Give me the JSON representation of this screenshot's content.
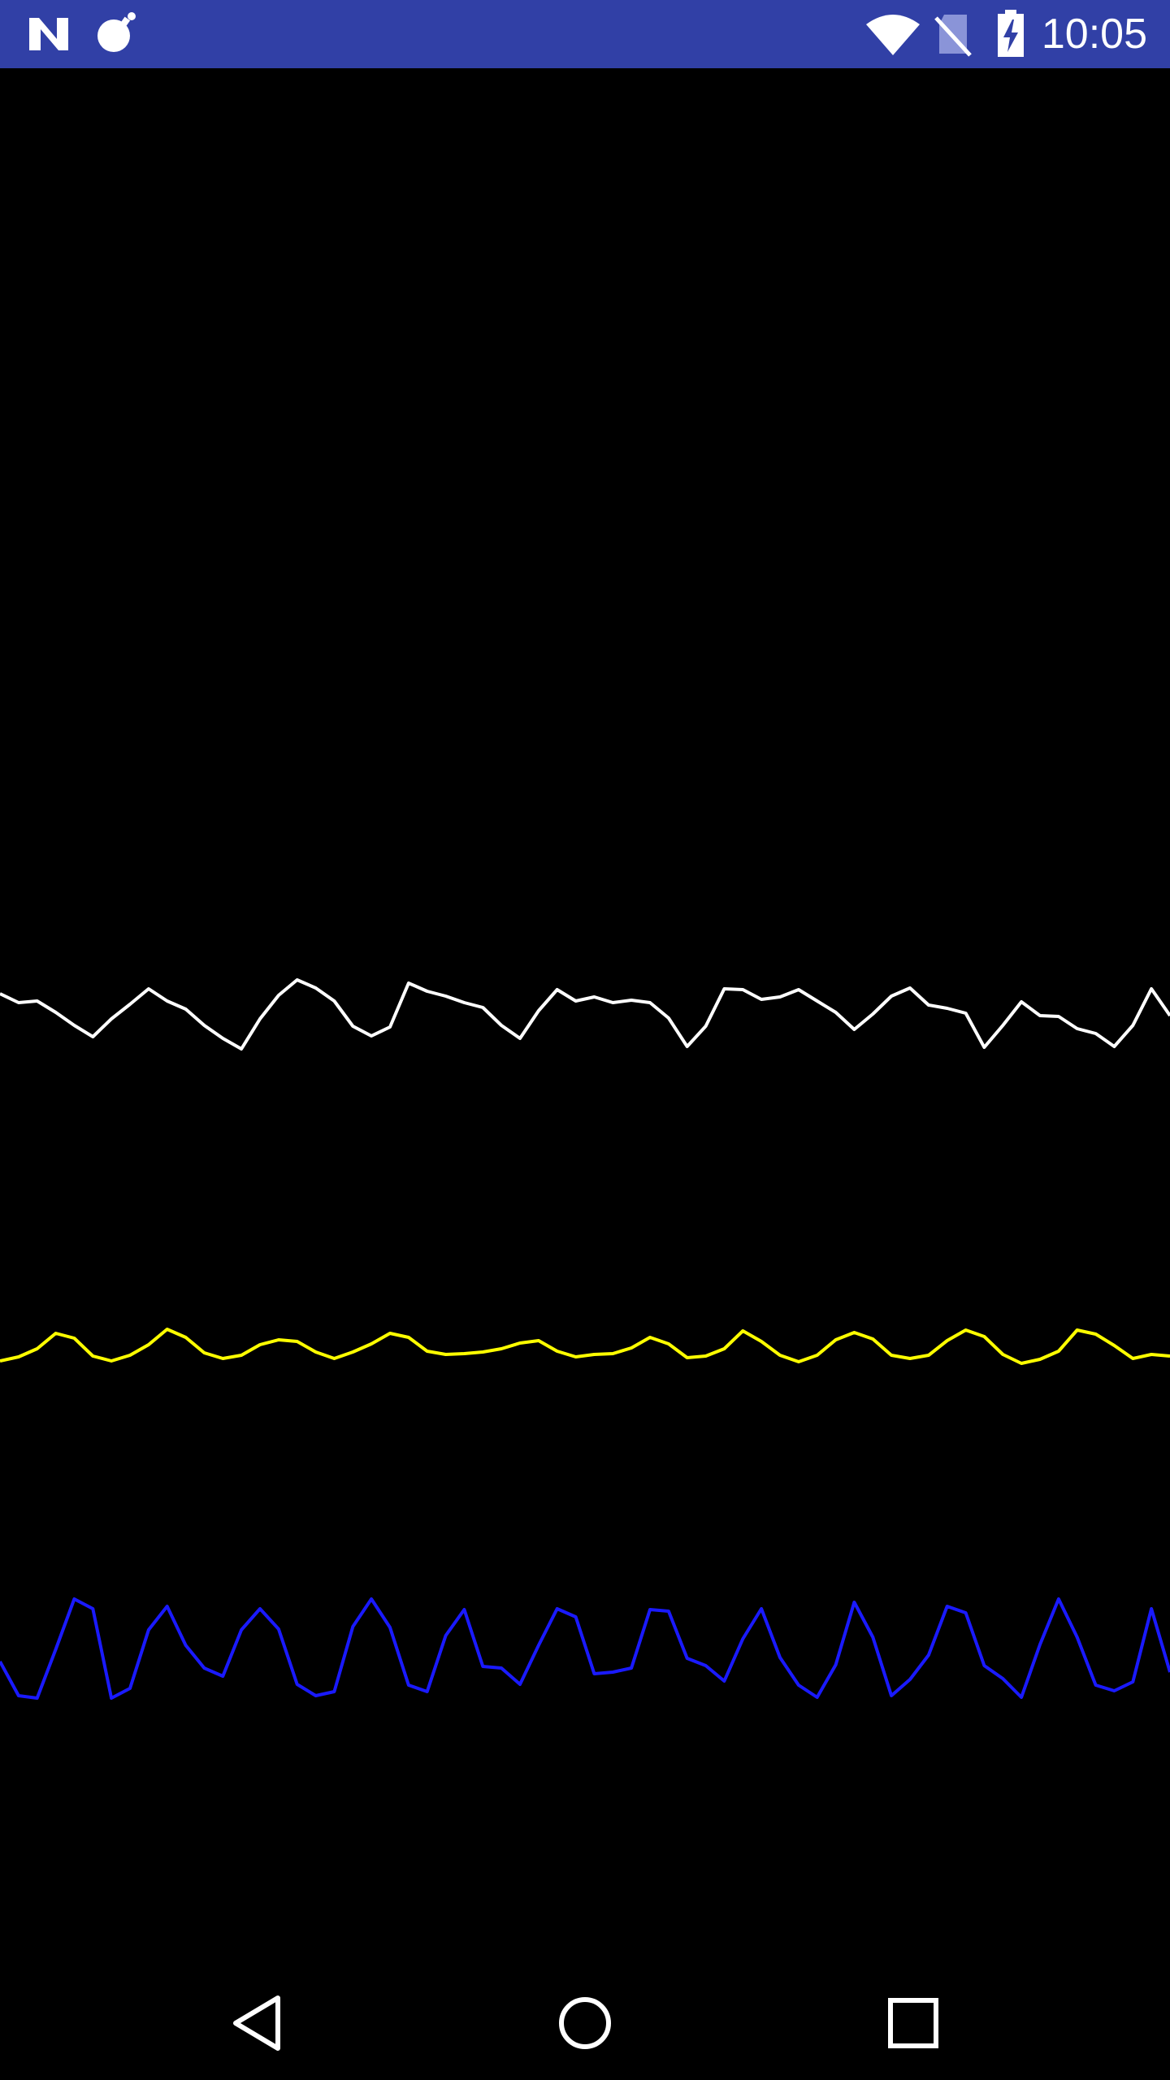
{
  "status_bar": {
    "time": "10:05",
    "background_color": "#3140a6",
    "left_icons": [
      "n-logo-icon",
      "bomb-icon"
    ],
    "right_icons": [
      "wifi-icon",
      "no-sim-icon",
      "battery-charging-icon"
    ]
  },
  "chart_data": {
    "type": "line",
    "xlabel": "",
    "ylabel": "",
    "grid": false,
    "legend": "none",
    "ylim": [
      0,
      2336
    ],
    "series": [
      {
        "color": "#ffffff",
        "x": [
          0,
          14,
          28,
          42,
          56,
          70,
          84,
          98,
          112,
          126,
          140,
          154,
          168,
          182,
          196,
          210,
          224,
          238,
          252,
          266,
          280,
          294,
          308,
          322,
          336,
          350,
          364,
          378,
          392,
          406,
          420,
          434,
          448,
          462,
          476,
          490,
          504,
          518,
          532,
          546,
          560,
          574,
          588,
          602,
          616,
          630,
          644,
          658,
          672,
          686,
          700,
          714,
          728,
          742,
          756,
          770,
          784,
          798,
          812,
          826,
          840,
          854,
          868,
          882
        ],
        "values": [
          1223,
          1234,
          1232,
          1246,
          1262,
          1276,
          1254,
          1236,
          1217,
          1232,
          1242,
          1262,
          1278,
          1291,
          1254,
          1225,
          1206,
          1216,
          1232,
          1263,
          1275,
          1264,
          1210,
          1220,
          1226,
          1234,
          1240,
          1262,
          1278,
          1244,
          1218,
          1232,
          1227,
          1234,
          1231,
          1234,
          1253,
          1288,
          1263,
          1217,
          1218,
          1230,
          1227,
          1218,
          1232,
          1246,
          1267,
          1248,
          1226,
          1216,
          1237,
          1241,
          1247,
          1289,
          1262,
          1233,
          1250,
          1251,
          1266,
          1272,
          1288,
          1262,
          1217,
          1250
        ]
      },
      {
        "color": "#ffff00",
        "x": [
          0,
          14,
          28,
          42,
          56,
          70,
          84,
          98,
          112,
          126,
          140,
          154,
          168,
          182,
          196,
          210,
          224,
          238,
          252,
          266,
          280,
          294,
          308,
          322,
          336,
          350,
          364,
          378,
          392,
          406,
          420,
          434,
          448,
          462,
          476,
          490,
          504,
          518,
          532,
          546,
          560,
          574,
          588,
          602,
          616,
          630,
          644,
          658,
          672,
          686,
          700,
          714,
          728,
          742,
          756,
          770,
          784,
          798,
          812,
          826,
          840,
          854,
          868,
          882
        ],
        "values": [
          1675,
          1670,
          1660,
          1641,
          1647,
          1669,
          1675,
          1668,
          1655,
          1636,
          1646,
          1665,
          1672,
          1668,
          1655,
          1649,
          1651,
          1664,
          1672,
          1664,
          1654,
          1641,
          1646,
          1663,
          1667,
          1666,
          1664,
          1660,
          1653,
          1650,
          1663,
          1670,
          1667,
          1666,
          1659,
          1646,
          1654,
          1671,
          1669,
          1660,
          1638,
          1651,
          1668,
          1676,
          1668,
          1649,
          1640,
          1648,
          1668,
          1672,
          1668,
          1650,
          1637,
          1645,
          1667,
          1678,
          1673,
          1663,
          1637,
          1642,
          1656,
          1672,
          1667,
          1669
        ]
      },
      {
        "color": "#1a1aff",
        "x": [
          0,
          14,
          28,
          42,
          56,
          70,
          84,
          98,
          112,
          126,
          140,
          154,
          168,
          182,
          196,
          210,
          224,
          238,
          252,
          266,
          280,
          294,
          308,
          322,
          336,
          350,
          364,
          378,
          392,
          406,
          420,
          434,
          448,
          462,
          476,
          490,
          504,
          518,
          532,
          546,
          560,
          574,
          588,
          602,
          616,
          630,
          644,
          658,
          672,
          686,
          700,
          714,
          728,
          742,
          756,
          770,
          784,
          798,
          812,
          826,
          840,
          854,
          868,
          882
        ],
        "values": [
          2045,
          2087,
          2090,
          2030,
          1968,
          1980,
          2090,
          2078,
          2006,
          1977,
          2025,
          2053,
          2063,
          2006,
          1980,
          2005,
          2073,
          2087,
          2082,
          2002,
          1968,
          2003,
          2074,
          2082,
          2013,
          1981,
          2051,
          2053,
          2073,
          2025,
          1980,
          1990,
          2060,
          2058,
          2053,
          1981,
          1983,
          2041,
          2050,
          2069,
          2017,
          1980,
          2040,
          2074,
          2089,
          2049,
          1972,
          2015,
          2087,
          2067,
          2037,
          1977,
          1985,
          2050,
          2066,
          2089,
          2024,
          1968,
          2015,
          2074,
          2081,
          2070,
          1980,
          2058
        ]
      }
    ]
  },
  "nav_bar": {
    "icons": [
      "back-icon",
      "home-icon",
      "recents-icon"
    ]
  }
}
